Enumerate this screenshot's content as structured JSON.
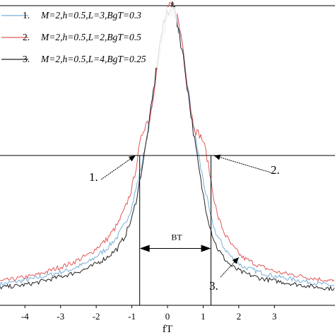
{
  "chart_data": {
    "type": "line",
    "xlabel": "fT",
    "ylabel": "",
    "title": "",
    "xlim": [
      -4.7,
      4.7
    ],
    "ylim": [
      0,
      1.0
    ],
    "x_ticks": [
      "-4",
      "-3",
      "-2",
      "-1",
      "0",
      "1",
      "2",
      "3"
    ],
    "legend": {
      "placement": "top-left",
      "entries": [
        {
          "index": "1.",
          "text": "M=2,h=0.5,L=3,BgT=0.3",
          "color": "#7aaed6"
        },
        {
          "index": "2.",
          "text": "M=2,h=0.5,L=2,BgT=0.5",
          "color": "#e05a5a"
        },
        {
          "index": "3.",
          "text": "M=2,h=0.5,L=4,BgT=0.25",
          "color": "#222222"
        }
      ]
    },
    "series": [
      {
        "name": "1. M=2,h=0.5,L=3,BgT=0.3",
        "color": "#7aaed6",
        "x": [
          -4.7,
          -4.2,
          -3.7,
          -3.2,
          -2.7,
          -2.2,
          -1.7,
          -1.4,
          -1.2,
          -1.0,
          -0.9,
          -0.8,
          -0.7,
          -0.6,
          -0.5,
          -0.4,
          -0.3,
          -0.2,
          -0.1,
          0.0,
          0.1,
          0.15,
          0.2,
          0.3,
          0.4,
          0.5,
          0.6,
          0.7,
          0.8,
          0.9,
          1.0,
          1.1,
          1.2,
          1.3,
          1.4,
          1.6,
          1.8,
          2.1,
          2.6,
          3.1,
          3.6,
          4.1,
          4.7
        ],
        "y": [
          0.07,
          0.08,
          0.09,
          0.105,
          0.12,
          0.145,
          0.19,
          0.23,
          0.27,
          0.33,
          0.38,
          0.43,
          0.48,
          0.55,
          0.62,
          0.7,
          0.78,
          0.86,
          0.92,
          0.96,
          0.985,
          0.99,
          0.975,
          0.93,
          0.87,
          0.79,
          0.7,
          0.62,
          0.55,
          0.48,
          0.42,
          0.36,
          0.3,
          0.26,
          0.23,
          0.19,
          0.16,
          0.13,
          0.11,
          0.095,
          0.085,
          0.075,
          0.065
        ]
      },
      {
        "name": "2. M=2,h=0.5,L=2,BgT=0.5",
        "color": "#e05a5a",
        "x": [
          -4.7,
          -4.2,
          -3.7,
          -3.2,
          -2.7,
          -2.2,
          -1.7,
          -1.4,
          -1.2,
          -1.0,
          -0.9,
          -0.8,
          -0.7,
          -0.6,
          -0.5,
          -0.4,
          -0.3,
          -0.2,
          -0.1,
          0.0,
          0.1,
          0.15,
          0.2,
          0.3,
          0.4,
          0.5,
          0.6,
          0.7,
          0.8,
          0.9,
          1.0,
          1.1,
          1.2,
          1.3,
          1.4,
          1.6,
          1.8,
          2.1,
          2.6,
          3.1,
          3.6,
          4.1,
          4.7
        ],
        "y": [
          0.08,
          0.09,
          0.1,
          0.12,
          0.14,
          0.17,
          0.22,
          0.27,
          0.32,
          0.39,
          0.45,
          0.52,
          0.58,
          0.61,
          0.62,
          0.7,
          0.8,
          0.88,
          0.94,
          0.98,
          1.0,
          1.0,
          0.99,
          0.95,
          0.89,
          0.8,
          0.7,
          0.62,
          0.58,
          0.57,
          0.55,
          0.5,
          0.43,
          0.36,
          0.3,
          0.24,
          0.2,
          0.16,
          0.13,
          0.11,
          0.1,
          0.09,
          0.08
        ]
      },
      {
        "name": "3. M=2,h=0.5,L=4,BgT=0.25",
        "color": "#222222",
        "x": [
          -4.7,
          -4.2,
          -3.7,
          -3.2,
          -2.7,
          -2.2,
          -1.7,
          -1.4,
          -1.2,
          -1.0,
          -0.9,
          -0.8,
          -0.7,
          -0.6,
          -0.5,
          -0.4,
          -0.3,
          -0.2,
          -0.1,
          0.0,
          0.1,
          0.15,
          0.2,
          0.3,
          0.4,
          0.5,
          0.6,
          0.7,
          0.8,
          0.9,
          1.0,
          1.1,
          1.2,
          1.3,
          1.4,
          1.6,
          1.8,
          2.1,
          2.6,
          3.1,
          3.6,
          4.1,
          4.7
        ],
        "y": [
          0.06,
          0.065,
          0.075,
          0.09,
          0.105,
          0.125,
          0.16,
          0.19,
          0.23,
          0.29,
          0.34,
          0.4,
          0.47,
          0.54,
          0.62,
          0.71,
          0.8,
          0.88,
          0.94,
          0.98,
          1.0,
          1.0,
          0.98,
          0.93,
          0.86,
          0.78,
          0.69,
          0.6,
          0.52,
          0.44,
          0.37,
          0.31,
          0.26,
          0.22,
          0.19,
          0.155,
          0.13,
          0.11,
          0.09,
          0.08,
          0.07,
          0.062,
          0.055
        ]
      }
    ],
    "threshold_y": 0.5,
    "bandwidth_lines_x": [
      -0.78,
      1.22
    ],
    "bandwidth_label": "BT",
    "callouts": [
      "1.",
      "2.",
      "3."
    ]
  }
}
